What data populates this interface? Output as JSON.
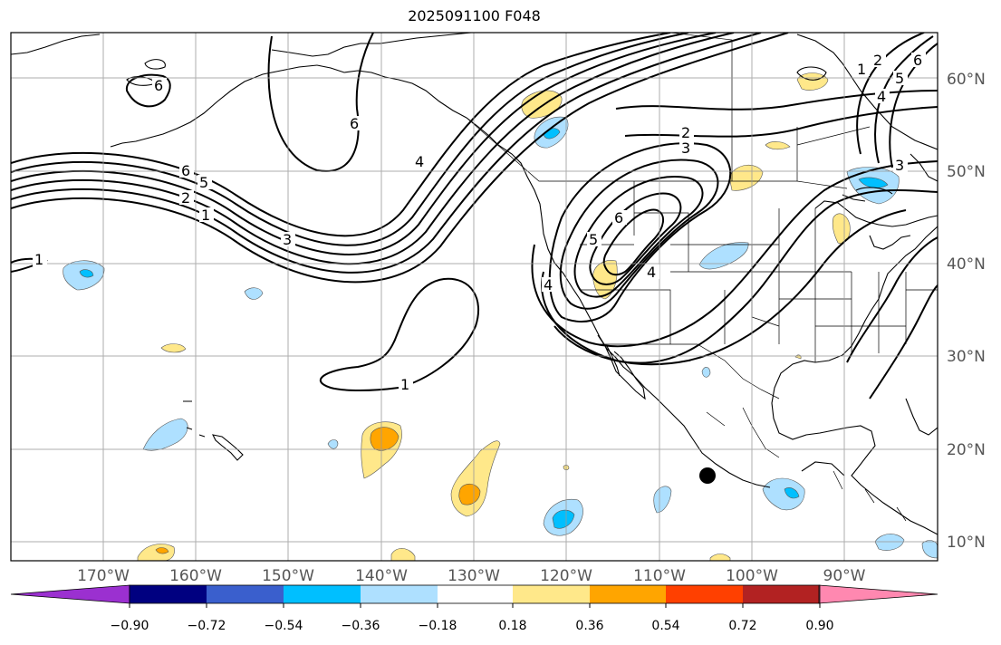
{
  "title": "2025091100 F048",
  "lon_labels": [
    "170°W",
    "160°W",
    "150°W",
    "140°W",
    "130°W",
    "120°W",
    "110°W",
    "100°W",
    "90°W"
  ],
  "lat_labels": [
    "60°N",
    "50°N",
    "40°N",
    "30°N",
    "20°N",
    "10°N"
  ],
  "colorbar": {
    "ticks": [
      "−0.90",
      "−0.72",
      "−0.54",
      "−0.36",
      "−0.18",
      "0.18",
      "0.36",
      "0.54",
      "0.72",
      "0.90"
    ],
    "colors": [
      "#9b30d0",
      "#000080",
      "#3a5fcd",
      "#00bfff",
      "#aee0ff",
      "#ffffff",
      "#ffe88a",
      "#ffa500",
      "#ff4000",
      "#b22222",
      "#ff88b0"
    ]
  },
  "contour_labels": [
    "1",
    "2",
    "3",
    "4",
    "5",
    "6",
    "1",
    "2",
    "3",
    "4",
    "5",
    "6",
    "1",
    "2",
    "3",
    "4",
    "6",
    "6",
    "6",
    "1"
  ],
  "marker": "station-dot",
  "map_extent": {
    "lon": [
      -180,
      -80
    ],
    "lat": [
      8,
      65
    ]
  }
}
